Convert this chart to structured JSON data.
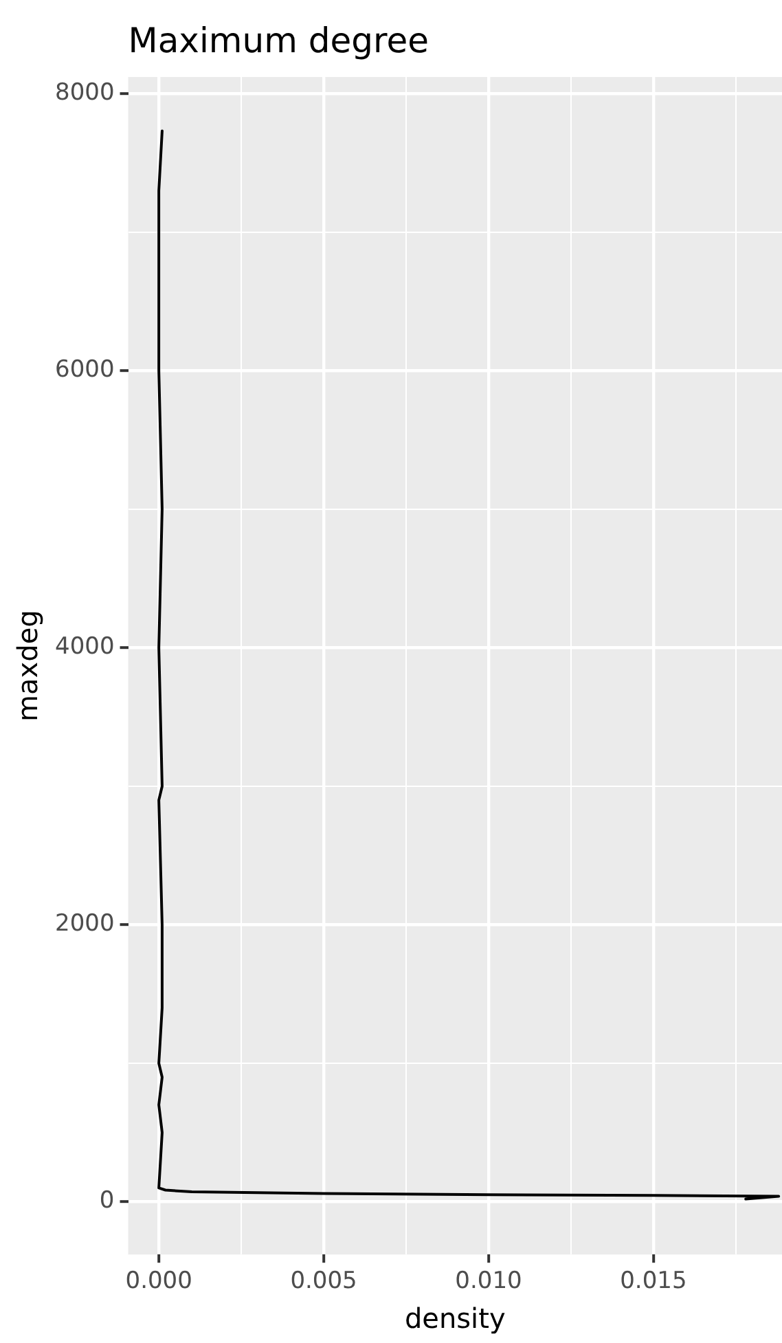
{
  "chart_data": {
    "type": "line",
    "title": "Maximum degree",
    "xlabel": "density",
    "ylabel": "maxdeg",
    "xlim": [
      -0.00093,
      0.0189
    ],
    "ylim": [
      -380,
      8120
    ],
    "xticks": [
      {
        "value": 0,
        "label": "0.000"
      },
      {
        "value": 0.0025,
        "label": null
      },
      {
        "value": 0.005,
        "label": "0.005"
      },
      {
        "value": 0.0075,
        "label": null
      },
      {
        "value": 0.01,
        "label": "0.010"
      },
      {
        "value": 0.0125,
        "label": null
      },
      {
        "value": 0.015,
        "label": "0.015"
      },
      {
        "value": 0.0175,
        "label": null
      }
    ],
    "yticks": [
      0,
      {
        "value": 1000,
        "label": null
      },
      2000,
      {
        "value": 3000,
        "label": null
      },
      4000,
      {
        "value": 5000,
        "label": null
      },
      6000,
      {
        "value": 7000,
        "label": null
      },
      8000
    ],
    "grid": true,
    "legend": false,
    "series": [
      {
        "color": "#000000",
        "x": [
          0.0178,
          0.0188,
          0.015,
          0.01,
          0.005,
          0.001,
          0.0002,
          0,
          0.0001,
          0,
          0.0001,
          0,
          0.0001,
          0.0001,
          0,
          0.0001,
          0,
          0.0001,
          0,
          0,
          0.0001
        ],
        "values": [
          20,
          40,
          46,
          52,
          60,
          72,
          85,
          100,
          500,
          700,
          900,
          1000,
          1400,
          2000,
          2900,
          3000,
          4000,
          5000,
          6000,
          7300,
          7730
        ]
      }
    ]
  }
}
